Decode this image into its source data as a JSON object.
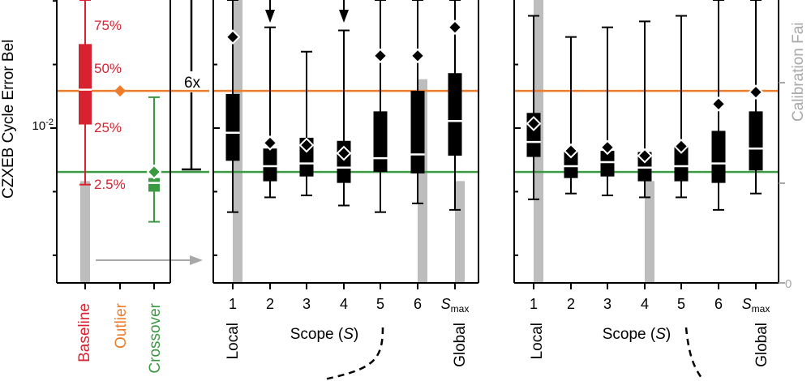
{
  "chart_data": [
    {
      "type": "box",
      "panel": "reference",
      "ylabel": "CZXEB Cycle Error Bel",
      "yscale": "log",
      "y_tick_labels": [
        "10^-2"
      ],
      "categories": [
        "Baseline",
        "Outlier",
        "Crossover"
      ],
      "category_colors": [
        "#d9222f",
        "#ee7d2b",
        "#3a9a42"
      ],
      "baseline_percentile_labels": [
        "75%",
        "50%",
        "25%",
        "2.5%"
      ],
      "ratio_label": "6x",
      "boxes": [
        {
          "name": "Baseline",
          "whisker_low": 0.0054,
          "q1": 0.0104,
          "median": 0.0152,
          "q3": 0.025,
          "whisker_high": 0.048
        },
        {
          "name": "Outlier",
          "value": 0.015
        },
        {
          "name": "Crossover",
          "whisker_low": 0.0036,
          "q1": 0.005,
          "median": 0.0055,
          "q3": 0.0058,
          "whisker_high": 0.014,
          "marker": 0.0062
        }
      ],
      "reference_lines": [
        {
          "name": "Outlier",
          "value": 0.015,
          "color": "#ee7d2b"
        },
        {
          "name": "Crossover",
          "value": 0.0062,
          "color": "#3a9a42"
        }
      ],
      "gray_bars": [
        {
          "category": "Baseline",
          "value_fraction": 0.36
        }
      ]
    },
    {
      "type": "box",
      "panel": "middle",
      "xlabel": "Scope (S)",
      "x_tick_labels": [
        "1",
        "2",
        "3",
        "4",
        "5",
        "6",
        "Smax"
      ],
      "x_end_labels": [
        "Local",
        "Global"
      ],
      "arrows_at": [
        "2",
        "4"
      ],
      "boxes": [
        {
          "scope": "1",
          "whisker_low": 0.004,
          "q1": 0.007,
          "median": 0.0095,
          "q3": 0.0145,
          "whisker_high": 0.05,
          "diamond": 0.027
        },
        {
          "scope": "2",
          "whisker_low": 0.0047,
          "q1": 0.0056,
          "median": 0.0066,
          "q3": 0.008,
          "whisker_high": 0.03,
          "diamond": 0.0085
        },
        {
          "scope": "3",
          "whisker_low": 0.0048,
          "q1": 0.0059,
          "median": 0.0068,
          "q3": 0.009,
          "whisker_high": 0.023,
          "diamond": 0.0083
        },
        {
          "scope": "4",
          "whisker_low": 0.0043,
          "q1": 0.0055,
          "median": 0.0065,
          "q3": 0.0087,
          "whisker_high": 0.029,
          "diamond": 0.0076
        },
        {
          "scope": "5",
          "whisker_low": 0.004,
          "q1": 0.0062,
          "median": 0.0072,
          "q3": 0.012,
          "whisker_high": 0.06,
          "diamond": 0.022
        },
        {
          "scope": "6",
          "whisker_low": 0.0044,
          "q1": 0.0061,
          "median": 0.0075,
          "q3": 0.015,
          "whisker_high": 0.058,
          "diamond": 0.022
        },
        {
          "scope": "Smax",
          "whisker_low": 0.0041,
          "q1": 0.0074,
          "median": 0.0108,
          "q3": 0.0182,
          "whisker_high": 0.058,
          "diamond": 0.03
        }
      ],
      "reference_lines": [
        {
          "value": 0.015,
          "color": "#ee7d2b"
        },
        {
          "value": 0.0062,
          "color": "#3a9a42"
        }
      ],
      "gray_bars": [
        {
          "scope": "1",
          "value_fraction": 1.0
        },
        {
          "scope": "6",
          "value_fraction": 0.72
        },
        {
          "scope": "Smax",
          "value_fraction": 0.36
        }
      ]
    },
    {
      "type": "box",
      "panel": "right",
      "xlabel": "Scope (S)",
      "x_tick_labels": [
        "1",
        "2",
        "3",
        "4",
        "5",
        "6",
        "Smax"
      ],
      "x_end_labels": [
        "Local",
        "Global"
      ],
      "y2label": "Calibration Fai",
      "y2_tick_labels": [
        "0"
      ],
      "boxes": [
        {
          "scope": "1",
          "whisker_low": 0.0046,
          "q1": 0.0073,
          "median": 0.0086,
          "q3": 0.0118,
          "whisker_high": 0.034,
          "diamond": 0.0105
        },
        {
          "scope": "2",
          "whisker_low": 0.0049,
          "q1": 0.0058,
          "median": 0.0066,
          "q3": 0.0078,
          "whisker_high": 0.027,
          "diamond": 0.0078
        },
        {
          "scope": "3",
          "whisker_low": 0.0048,
          "q1": 0.0059,
          "median": 0.0069,
          "q3": 0.0078,
          "whisker_high": 0.03,
          "diamond": 0.0081
        },
        {
          "scope": "4",
          "whisker_low": 0.0047,
          "q1": 0.0056,
          "median": 0.0065,
          "q3": 0.0077,
          "whisker_high": 0.032,
          "diamond": 0.0074
        },
        {
          "scope": "5",
          "whisker_low": 0.0047,
          "q1": 0.0056,
          "median": 0.0066,
          "q3": 0.0082,
          "whisker_high": 0.034,
          "diamond": 0.0082
        },
        {
          "scope": "6",
          "whisker_low": 0.0041,
          "q1": 0.0055,
          "median": 0.0068,
          "q3": 0.0097,
          "whisker_high": 0.067,
          "diamond": 0.013
        },
        {
          "scope": "Smax",
          "whisker_low": 0.0049,
          "q1": 0.0063,
          "median": 0.008,
          "q3": 0.012,
          "whisker_high": 0.057,
          "diamond": 0.0148
        }
      ],
      "reference_lines": [
        {
          "value": 0.015,
          "color": "#ee7d2b"
        },
        {
          "value": 0.0062,
          "color": "#3a9a42"
        }
      ],
      "gray_bars": [
        {
          "scope": "1",
          "value_fraction": 1.0
        },
        {
          "scope": "4",
          "value_fraction": 0.36
        }
      ]
    }
  ],
  "colors": {
    "box": "#000000",
    "gray_bar": "#bdbdbd",
    "axis": "#000000",
    "y2_label": "#a8a8a8"
  }
}
